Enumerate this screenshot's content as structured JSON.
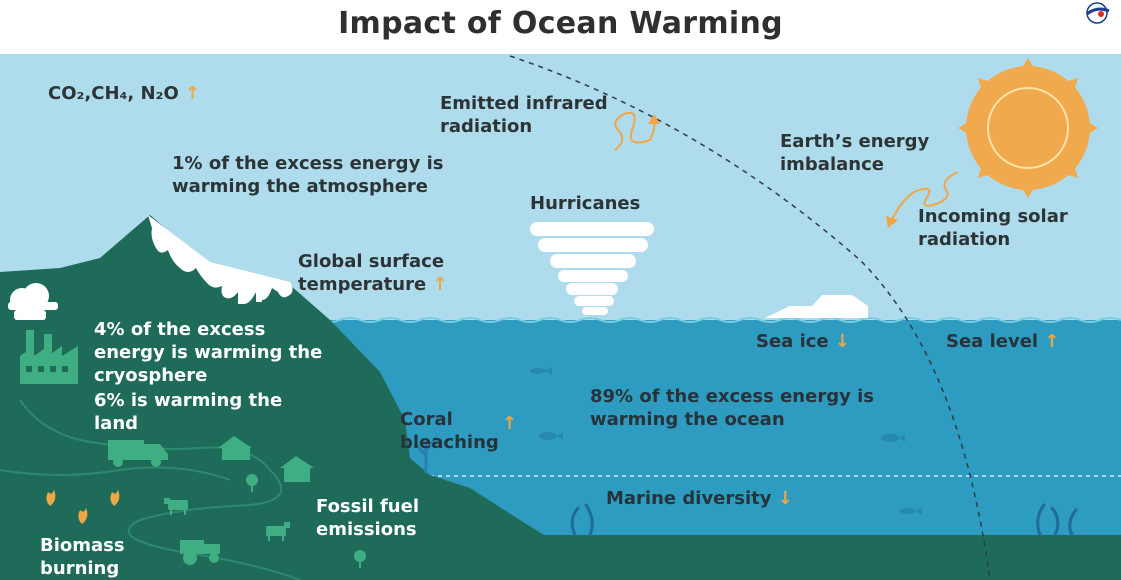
{
  "title": "Impact of Ocean Warming",
  "labels": {
    "ghg": "CO₂,CH₄, N₂O",
    "emitted": "Emitted infrared\nradiation",
    "atmosphere": "1% of the excess energy is\nwarming the atmosphere",
    "hurricanes": "Hurricanes",
    "imbalance": "Earth’s energy\nimbalance",
    "incoming": "Incoming solar\nradiation",
    "surface_temp": "Global surface\ntemperature",
    "cryosphere": "4% of the excess\nenergy is warming the\ncryosphere",
    "land": "6% is warming the\nland",
    "sea_ice": "Sea ice",
    "sea_level": "Sea level",
    "coral": "Coral\nbleaching",
    "ocean": "89% of the excess energy is\nwarming the ocean",
    "fossil": "Fossil fuel\nemissions",
    "marine": "Marine diversity",
    "biomass": "Biomass\nburning"
  },
  "arrows": {
    "up": "↑",
    "down": "↓"
  },
  "colors": {
    "sky": "#aedcec",
    "ocean": "#2e9cc0",
    "ocean_deep": "#2a8fb4",
    "land": "#1f6b5a",
    "land_icon": "#3fae82",
    "sun": "#f1a94e",
    "arrow": "#f0a644",
    "text": "#2d3436"
  }
}
